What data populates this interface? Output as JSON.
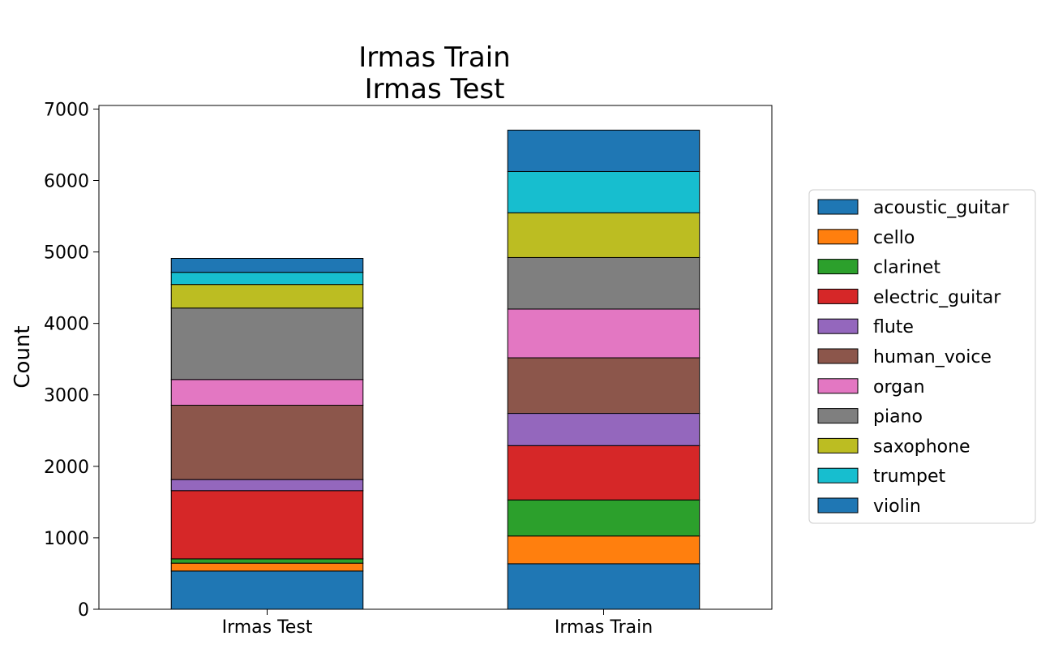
{
  "chart_data": {
    "type": "bar",
    "stacked": true,
    "title_lines": [
      "Irmas Train",
      "Irmas Test"
    ],
    "xlabel": "",
    "ylabel": "Count",
    "ylim": [
      0,
      7050
    ],
    "yticks": [
      0,
      1000,
      2000,
      3000,
      4000,
      5000,
      6000,
      7000
    ],
    "categories": [
      "Irmas Test",
      "Irmas Train"
    ],
    "legend_position": "right",
    "grid": false,
    "series": [
      {
        "name": "acoustic_guitar",
        "color": "#1f77b4",
        "values": [
          535,
          637
        ]
      },
      {
        "name": "cello",
        "color": "#ff7f0e",
        "values": [
          110,
          388
        ]
      },
      {
        "name": "clarinet",
        "color": "#2ca02c",
        "values": [
          60,
          505
        ]
      },
      {
        "name": "electric_guitar",
        "color": "#d62728",
        "values": [
          955,
          760
        ]
      },
      {
        "name": "flute",
        "color": "#9467bd",
        "values": [
          155,
          451
        ]
      },
      {
        "name": "human_voice",
        "color": "#8c564b",
        "values": [
          1040,
          778
        ]
      },
      {
        "name": "organ",
        "color": "#e377c2",
        "values": [
          360,
          682
        ]
      },
      {
        "name": "piano",
        "color": "#7f7f7f",
        "values": [
          1000,
          721
        ]
      },
      {
        "name": "saxophone",
        "color": "#bcbd22",
        "values": [
          330,
          626
        ]
      },
      {
        "name": "trumpet",
        "color": "#17becf",
        "values": [
          170,
          577
        ]
      },
      {
        "name": "violin",
        "color": "#1f77b4",
        "values": [
          195,
          580
        ]
      }
    ]
  }
}
